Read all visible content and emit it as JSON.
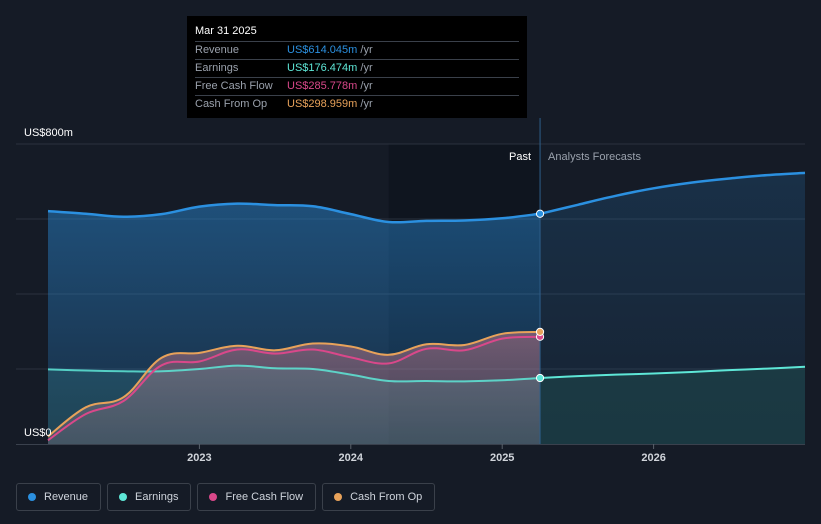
{
  "chart_data": {
    "type": "area",
    "y_axis": {
      "top_label": "US$800m",
      "bottom_label": "US$0",
      "ylim": [
        0,
        800
      ]
    },
    "x_axis": {
      "ticks": [
        {
          "label": "2023",
          "x": 2023.0
        },
        {
          "label": "2024",
          "x": 2024.0
        },
        {
          "label": "2025",
          "x": 2025.0
        },
        {
          "label": "2026",
          "x": 2026.0
        }
      ],
      "xlim": [
        2021.8,
        2027.0
      ]
    },
    "divider": {
      "past_label": "Past",
      "forecast_label": "Analysts Forecasts",
      "x": 2025.25,
      "highlight_start": 2024.25
    },
    "grid": true,
    "series": [
      {
        "name": "Revenue",
        "color": "#2b90e0",
        "x": [
          2022.0,
          2022.25,
          2022.5,
          2022.75,
          2023.0,
          2023.25,
          2023.5,
          2023.75,
          2024.0,
          2024.25,
          2024.5,
          2024.75,
          2025.0,
          2025.25
        ],
        "values": [
          621,
          614,
          606,
          613,
          633,
          641,
          637,
          634,
          613,
          592,
          595,
          596,
          602,
          614
        ],
        "forecast_x": [
          2025.25,
          2025.5,
          2025.75,
          2026.0,
          2026.25,
          2026.5,
          2026.75,
          2027.0
        ],
        "forecast_values": [
          614,
          638,
          662,
          682,
          697,
          708,
          717,
          723
        ]
      },
      {
        "name": "Earnings",
        "color": "#5ee7d7",
        "x": [
          2022.0,
          2022.25,
          2022.5,
          2022.75,
          2023.0,
          2023.25,
          2023.5,
          2023.75,
          2024.0,
          2024.25,
          2024.5,
          2024.75,
          2025.0,
          2025.25
        ],
        "values": [
          199,
          196,
          194,
          194,
          200,
          209,
          202,
          200,
          185,
          168,
          168,
          167,
          170,
          176
        ],
        "forecast_x": [
          2025.25,
          2025.5,
          2025.75,
          2026.0,
          2026.25,
          2026.5,
          2026.75,
          2027.0
        ],
        "forecast_values": [
          176,
          181,
          185,
          188,
          192,
          197,
          201,
          206
        ]
      },
      {
        "name": "Free Cash Flow",
        "color": "#d9488a",
        "x": [
          2022.0,
          2022.25,
          2022.5,
          2022.75,
          2023.0,
          2023.25,
          2023.5,
          2023.75,
          2024.0,
          2024.25,
          2024.5,
          2024.75,
          2025.0,
          2025.25
        ],
        "values": [
          10,
          80,
          115,
          210,
          220,
          252,
          241,
          252,
          231,
          215,
          254,
          250,
          281,
          286
        ]
      },
      {
        "name": "Cash From Op",
        "color": "#e8a25a",
        "x": [
          2022.0,
          2022.25,
          2022.5,
          2022.75,
          2023.0,
          2023.25,
          2023.5,
          2023.75,
          2024.0,
          2024.25,
          2024.5,
          2024.75,
          2025.0,
          2025.25
        ],
        "values": [
          20,
          98,
          125,
          230,
          243,
          262,
          250,
          268,
          260,
          238,
          266,
          264,
          294,
          299
        ]
      }
    ],
    "tooltip": {
      "date": "Mar 31 2025",
      "rows": [
        {
          "label": "Revenue",
          "value": "US$614.045m",
          "unit": "/yr",
          "color": "#2b90e0"
        },
        {
          "label": "Earnings",
          "value": "US$176.474m",
          "unit": "/yr",
          "color": "#5ee7d7"
        },
        {
          "label": "Free Cash Flow",
          "value": "US$285.778m",
          "unit": "/yr",
          "color": "#d9488a"
        },
        {
          "label": "Cash From Op",
          "value": "US$298.959m",
          "unit": "/yr",
          "color": "#e8a25a"
        }
      ]
    },
    "legend": [
      {
        "label": "Revenue",
        "color": "#2b90e0"
      },
      {
        "label": "Earnings",
        "color": "#5ee7d7"
      },
      {
        "label": "Free Cash Flow",
        "color": "#d9488a"
      },
      {
        "label": "Cash From Op",
        "color": "#e8a25a"
      }
    ]
  }
}
